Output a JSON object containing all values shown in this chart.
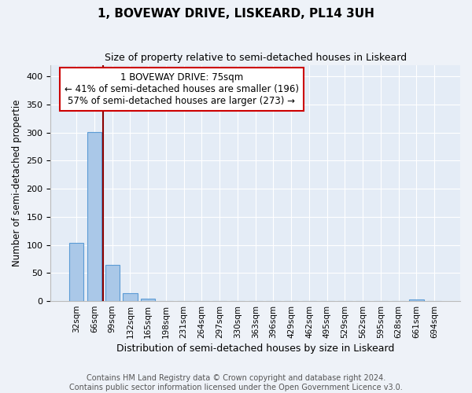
{
  "title": "1, BOVEWAY DRIVE, LISKEARD, PL14 3UH",
  "subtitle": "Size of property relative to semi-detached houses in Liskeard",
  "xlabel": "Distribution of semi-detached houses by size in Liskeard",
  "ylabel": "Number of semi-detached propertie",
  "bin_labels": [
    "32sqm",
    "66sqm",
    "99sqm",
    "132sqm",
    "165sqm",
    "198sqm",
    "231sqm",
    "264sqm",
    "297sqm",
    "330sqm",
    "363sqm",
    "396sqm",
    "429sqm",
    "462sqm",
    "495sqm",
    "529sqm",
    "562sqm",
    "595sqm",
    "628sqm",
    "661sqm",
    "694sqm"
  ],
  "bar_values": [
    103,
    301,
    65,
    14,
    4,
    0,
    0,
    0,
    0,
    0,
    0,
    0,
    0,
    0,
    0,
    0,
    0,
    0,
    0,
    3,
    0
  ],
  "bar_color": "#aac8e8",
  "bar_edgecolor": "#5b9bd5",
  "bar_linewidth": 0.8,
  "vline_color": "#8b0000",
  "vline_x": 1.5,
  "annotation_text": "1 BOVEWAY DRIVE: 75sqm\n← 41% of semi-detached houses are smaller (196)\n57% of semi-detached houses are larger (273) →",
  "annotation_box_edgecolor": "#cc0000",
  "annotation_fontsize": 8.5,
  "ylim": [
    0,
    420
  ],
  "yticks": [
    0,
    50,
    100,
    150,
    200,
    250,
    300,
    350,
    400
  ],
  "title_fontsize": 11,
  "subtitle_fontsize": 9,
  "xlabel_fontsize": 9,
  "ylabel_fontsize": 8.5,
  "footer_text": "Contains HM Land Registry data © Crown copyright and database right 2024.\nContains public sector information licensed under the Open Government Licence v3.0.",
  "footer_fontsize": 7,
  "background_color": "#eef2f8",
  "plot_background_color": "#e4ecf6"
}
